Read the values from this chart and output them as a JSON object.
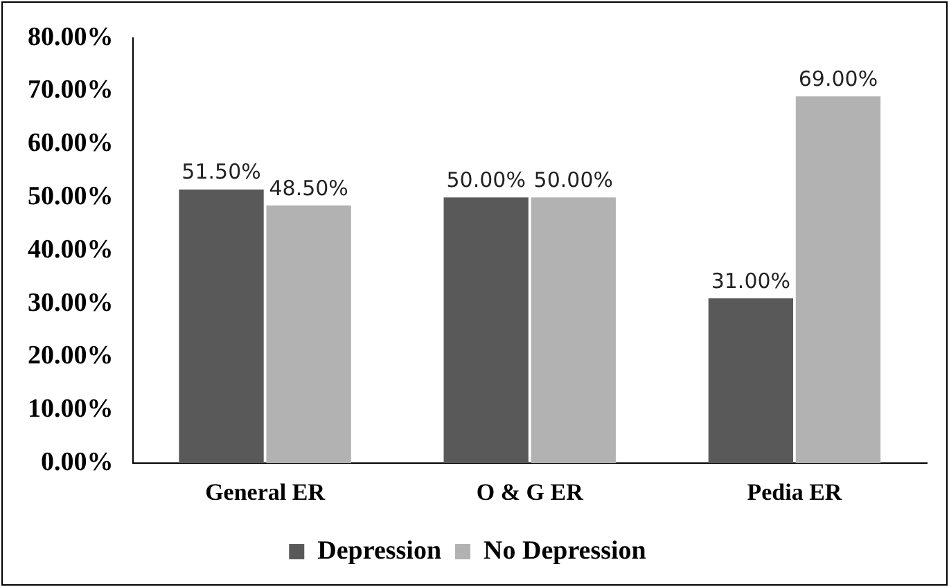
{
  "chart_data": {
    "type": "bar",
    "categories": [
      "General ER",
      "O & G ER",
      "Pedia ER"
    ],
    "series": [
      {
        "name": "Depression",
        "color": "#595959",
        "values": [
          51.5,
          50,
          31
        ],
        "value_labels": [
          "51.50%",
          "50.00%",
          "31.00%"
        ]
      },
      {
        "name": "No Depression",
        "color": "#b2b2b2",
        "values": [
          48.5,
          50,
          69
        ],
        "value_labels": [
          "48.50%",
          "50.00%",
          "69.00%"
        ]
      }
    ],
    "ylim": [
      0,
      80
    ],
    "yticks": [
      {
        "value": 0,
        "label": "0.00%"
      },
      {
        "value": 10,
        "label": "10.00%"
      },
      {
        "value": 20,
        "label": "20.00%"
      },
      {
        "value": 30,
        "label": "30.00%"
      },
      {
        "value": 40,
        "label": "40.00%"
      },
      {
        "value": 50,
        "label": "50.00%"
      },
      {
        "value": 60,
        "label": "60.00%"
      },
      {
        "value": 70,
        "label": "70.00%"
      },
      {
        "value": 80,
        "label": "80.00%"
      }
    ],
    "grid": false,
    "legend": "bottom"
  }
}
